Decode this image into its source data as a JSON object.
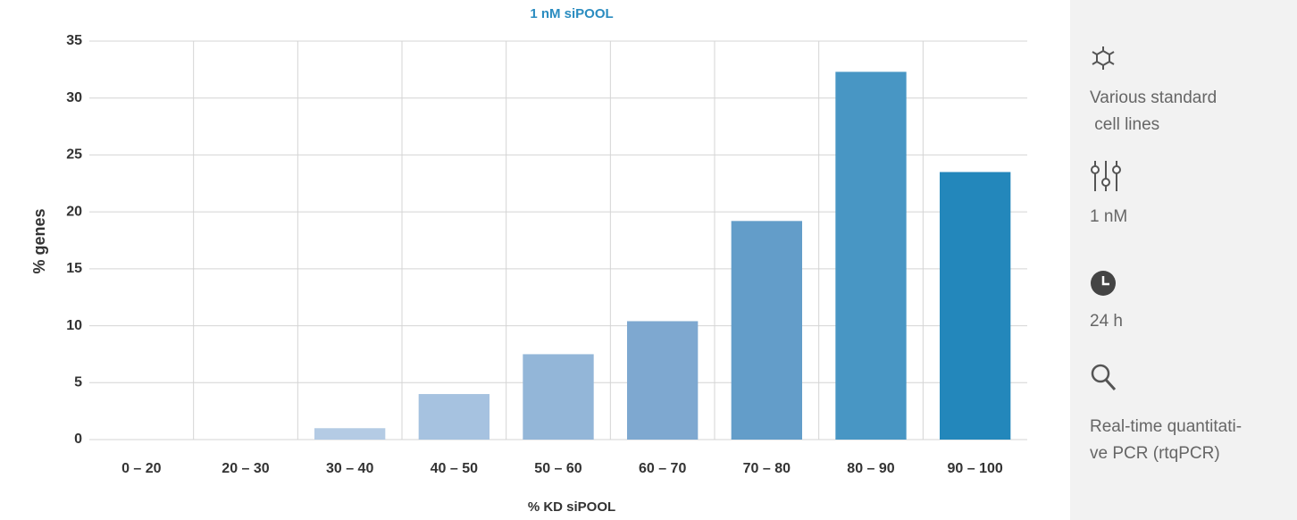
{
  "chart_data": {
    "type": "bar",
    "title": "1 nM siPOOL",
    "x_label": "% KD siPOOL",
    "y_label": "% genes",
    "categories": [
      "0 – 20",
      "20 – 30",
      "30 – 40",
      "40 – 50",
      "50 – 60",
      "60 – 70",
      "70 – 80",
      "80 – 90",
      "90 – 100"
    ],
    "values": [
      0,
      0,
      1,
      4,
      7.5,
      10.4,
      19.2,
      32.3,
      23.5
    ],
    "colors": [
      "#c8d8ea",
      "#bcd0e6",
      "#b4cbe4",
      "#a6c2e0",
      "#93b6d8",
      "#7ea8d0",
      "#639dc9",
      "#4896c4",
      "#2387bb"
    ],
    "ylim": [
      0,
      35
    ],
    "yticks": [
      0,
      5,
      10,
      15,
      20,
      25,
      30,
      35
    ],
    "grid": true
  },
  "sidebar": {
    "items": [
      {
        "lines": [
          "Various standard",
          " cell lines"
        ]
      },
      {
        "lines": [
          "1 nM"
        ]
      },
      {
        "lines": [
          "24 h"
        ]
      },
      {
        "lines": [
          "Real-time quantitati-",
          "ve PCR (rtqPCR)"
        ]
      }
    ]
  }
}
